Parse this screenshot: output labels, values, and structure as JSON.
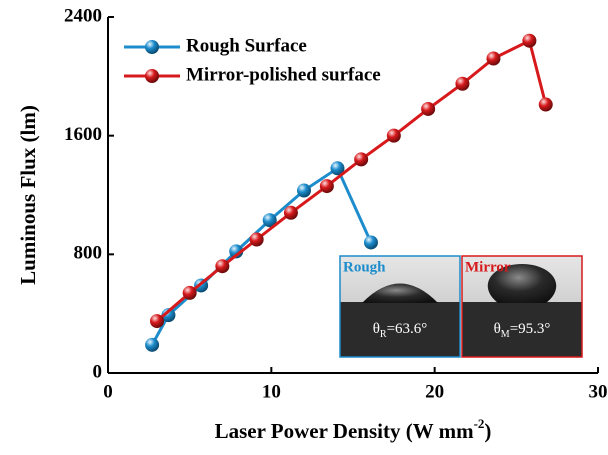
{
  "chart_data": {
    "type": "line",
    "x_label": "Laser Power Density (W mm",
    "x_label_superscript": "-2",
    "x_label_end": ")",
    "y_label": "Luminous Flux (lm)",
    "xlim": [
      0,
      30
    ],
    "xticks": [
      0,
      10,
      20,
      30
    ],
    "ylim": [
      0,
      2400
    ],
    "yticks": [
      0,
      800,
      1600,
      2400
    ],
    "legend": "upper left",
    "series": [
      {
        "name": "Rough Surface",
        "color": "#1c8ccc",
        "x": [
          2.7,
          3.7,
          5.7,
          7.85,
          9.9,
          12.0,
          14.05,
          16.1
        ],
        "values": [
          190,
          390,
          590,
          820,
          1030,
          1230,
          1380,
          880
        ]
      },
      {
        "name": "Mirror-polished surface",
        "color": "#d7191c",
        "x": [
          3.0,
          5.0,
          7.0,
          9.1,
          11.2,
          13.4,
          15.5,
          17.5,
          19.6,
          21.7,
          23.6,
          25.8,
          26.8
        ],
        "values": [
          350,
          540,
          720,
          900,
          1080,
          1260,
          1440,
          1600,
          1780,
          1950,
          2120,
          2240,
          1810
        ]
      }
    ],
    "insets": [
      {
        "label": "Rough",
        "color": "#1c8ccc",
        "symbol": "θ",
        "subscript": "R",
        "value": "=63.6°"
      },
      {
        "label": "Mirror",
        "color": "#d7191c",
        "symbol": "θ",
        "subscript": "M",
        "value": "=95.3°"
      }
    ]
  }
}
